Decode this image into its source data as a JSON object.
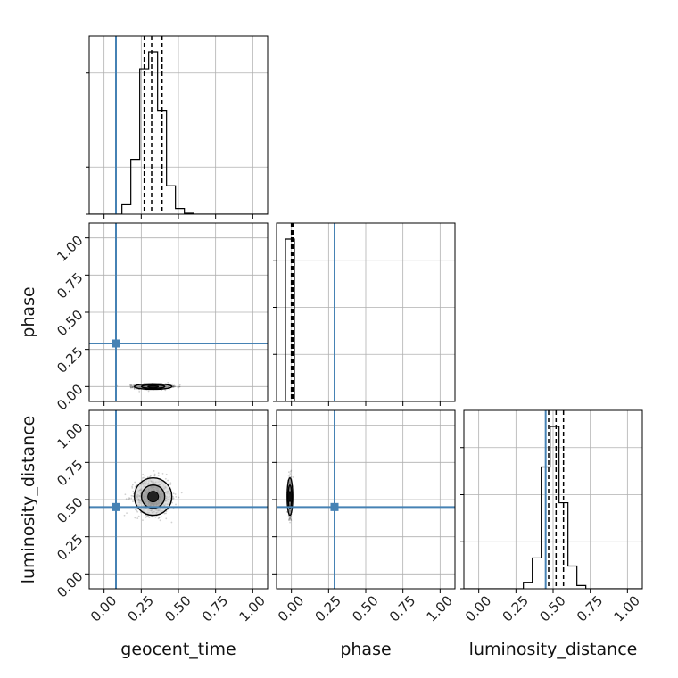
{
  "chart_data": {
    "type": "corner",
    "parameters": [
      "geocent_time",
      "phase",
      "luminosity_distance"
    ],
    "labels": {
      "x": [
        "geocent_time",
        "phase",
        "luminosity_distance"
      ],
      "y": [
        "phase",
        "luminosity_distance"
      ]
    },
    "ticks": [
      0.0,
      0.25,
      0.5,
      0.75,
      1.0
    ],
    "tick_labels": [
      "0.00",
      "0.25",
      "0.50",
      "0.75",
      "1.00"
    ],
    "range": [
      -0.1,
      1.1
    ],
    "truths": {
      "geocent_time": 0.08,
      "phase": 0.29,
      "luminosity_distance": 0.45
    },
    "truth_color": "#4682b4",
    "grid": true,
    "quantiles": {
      "geocent_time": [
        0.27,
        0.32,
        0.39
      ],
      "phase": [
        0.0,
        0.005,
        0.01
      ],
      "luminosity_distance": [
        0.47,
        0.52,
        0.57
      ]
    },
    "histograms": {
      "geocent_time": {
        "edges": [
          0.12,
          0.18,
          0.24,
          0.3,
          0.36,
          0.42,
          0.48,
          0.54,
          0.6
        ],
        "counts": [
          0.05,
          0.29,
          0.77,
          0.86,
          0.55,
          0.15,
          0.03,
          0.005
        ]
      },
      "phase": {
        "edges": [
          -0.04,
          0.0,
          0.02,
          0.06
        ],
        "counts": [
          1.0,
          1.0,
          0.0
        ]
      },
      "luminosity_distance": {
        "edges": [
          0.3,
          0.36,
          0.42,
          0.48,
          0.54,
          0.6,
          0.66,
          0.72
        ],
        "counts": [
          0.04,
          0.19,
          0.75,
          1.0,
          0.53,
          0.14,
          0.02
        ]
      }
    },
    "panels_2d": [
      {
        "x": "geocent_time",
        "y": "phase",
        "center": [
          0.33,
          0.0
        ],
        "spread": [
          0.06,
          0.008
        ]
      },
      {
        "x": "geocent_time",
        "y": "luminosity_distance",
        "center": [
          0.33,
          0.52
        ],
        "spread": [
          0.06,
          0.06
        ]
      },
      {
        "x": "phase",
        "y": "luminosity_distance",
        "center": [
          -0.01,
          0.52
        ],
        "spread": [
          0.006,
          0.06
        ]
      }
    ]
  }
}
